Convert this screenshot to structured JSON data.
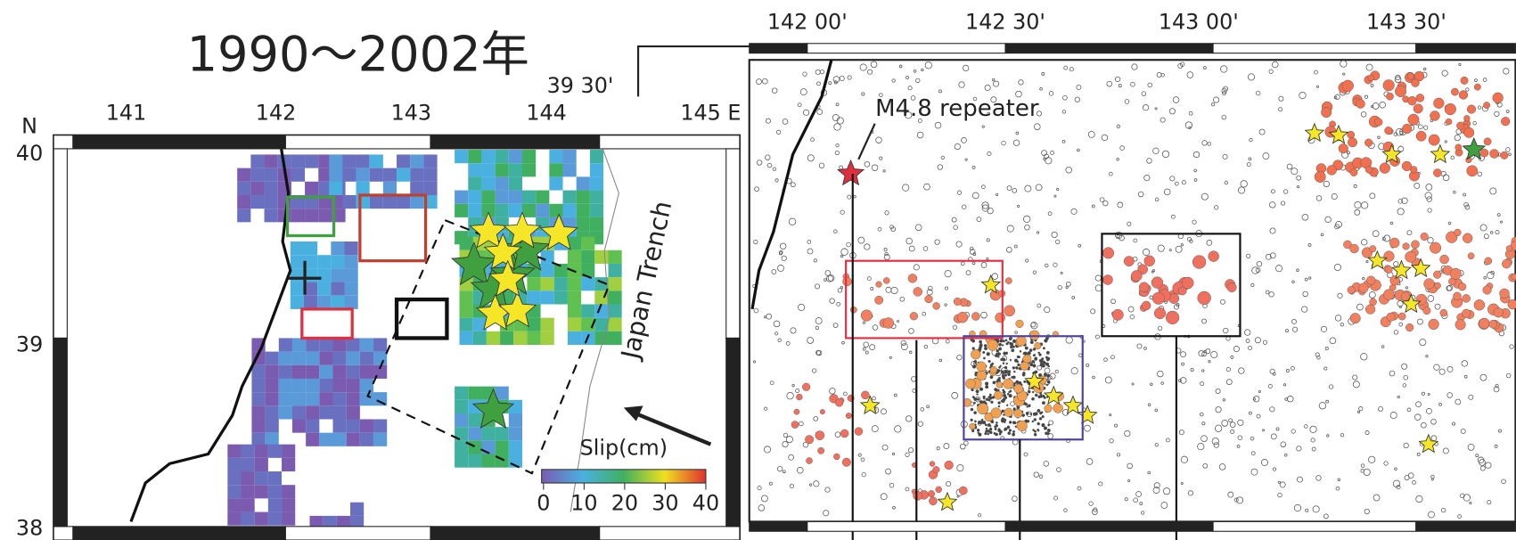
{
  "title": "1990～2002年",
  "left_map": {
    "lon_labels": [
      "141",
      "142",
      "143",
      "144",
      "145 E"
    ],
    "lat_labels": [
      "N",
      "40",
      "39",
      "38"
    ],
    "annotation": "Japan Trench",
    "colorbar": {
      "label": "Slip(cm)",
      "ticks": [
        0,
        10,
        20,
        30,
        40
      ]
    }
  },
  "right_map": {
    "lon_labels": [
      "142 00'",
      "142 30'",
      "143 00'",
      "143 30'"
    ],
    "lat_label": "39 30'",
    "annotation": "M4.8 repeater"
  }
}
